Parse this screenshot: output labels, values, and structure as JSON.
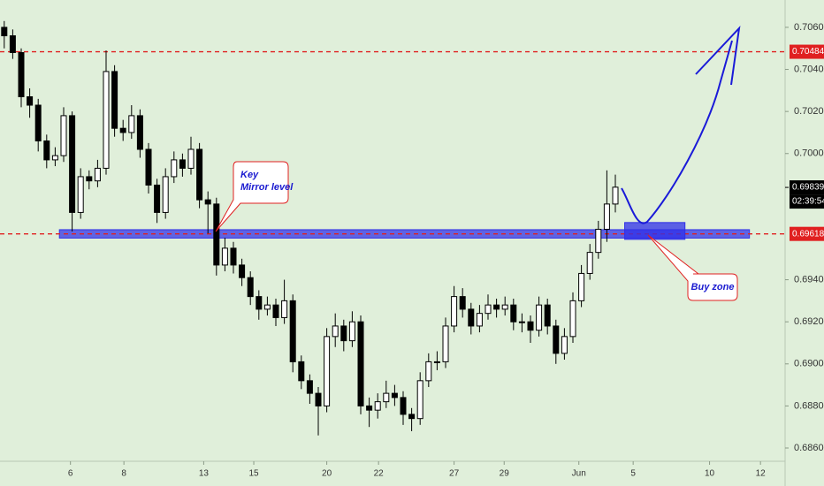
{
  "chart_data": {
    "type": "candlestick",
    "open": [
      0.706,
      0.7056,
      0.7048,
      0.7027,
      0.7023,
      0.7006,
      0.6997,
      0.6999,
      0.7018,
      0.6972,
      0.6989,
      0.6987,
      0.6993,
      0.7039,
      0.7012,
      0.701,
      0.7018,
      0.7002,
      0.6985,
      0.6972,
      0.6989,
      0.6997,
      0.6993,
      0.7002,
      0.6978,
      0.6976,
      0.6947,
      0.6955,
      0.6947,
      0.6941,
      0.6932,
      0.6926,
      0.6928,
      0.6922,
      0.693,
      0.6901,
      0.6892,
      0.6886,
      0.688,
      0.6913,
      0.6918,
      0.6911,
      0.692,
      0.688,
      0.6878,
      0.6882,
      0.6886,
      0.6884,
      0.6876,
      0.6874,
      0.6892,
      0.6901,
      0.6901,
      0.6918,
      0.6932,
      0.6926,
      0.6918,
      0.6924,
      0.6928,
      0.6926,
      0.6928,
      0.692,
      0.692,
      0.6916,
      0.6928,
      0.6918,
      0.6905,
      0.6913,
      0.693,
      0.6943,
      0.6953,
      0.6964,
      0.6976
    ],
    "high": [
      0.7063,
      0.7059,
      0.705,
      0.7031,
      0.7026,
      0.7009,
      0.7003,
      0.7022,
      0.702,
      0.6993,
      0.6992,
      0.6997,
      0.7049,
      0.7042,
      0.7016,
      0.7023,
      0.7021,
      0.7005,
      0.6988,
      0.6993,
      0.7001,
      0.7,
      0.7008,
      0.7005,
      0.6982,
      0.6979,
      0.696,
      0.6958,
      0.695,
      0.6944,
      0.6935,
      0.6932,
      0.6931,
      0.694,
      0.6933,
      0.6904,
      0.6895,
      0.6889,
      0.6917,
      0.6924,
      0.6921,
      0.6925,
      0.6923,
      0.6884,
      0.6886,
      0.6892,
      0.689,
      0.6887,
      0.6879,
      0.6896,
      0.6905,
      0.6906,
      0.6922,
      0.6937,
      0.6936,
      0.6929,
      0.6928,
      0.6933,
      0.6931,
      0.6932,
      0.6931,
      0.6924,
      0.6923,
      0.6932,
      0.6931,
      0.6921,
      0.6917,
      0.6934,
      0.6947,
      0.6957,
      0.6968,
      0.6992,
      0.699
    ],
    "low": [
      0.705,
      0.7045,
      0.7022,
      0.7017,
      0.7001,
      0.6993,
      0.6994,
      0.6996,
      0.6963,
      0.6969,
      0.6983,
      0.6984,
      0.699,
      0.7008,
      0.7006,
      0.7007,
      0.6998,
      0.6981,
      0.6967,
      0.6969,
      0.6986,
      0.6989,
      0.699,
      0.6974,
      0.6962,
      0.6942,
      0.6944,
      0.6943,
      0.6937,
      0.6928,
      0.6921,
      0.6923,
      0.6918,
      0.6919,
      0.6896,
      0.6888,
      0.6881,
      0.6866,
      0.6877,
      0.6908,
      0.6906,
      0.6908,
      0.6876,
      0.687,
      0.6874,
      0.6879,
      0.688,
      0.6871,
      0.6868,
      0.6871,
      0.6889,
      0.6897,
      0.6898,
      0.6915,
      0.6922,
      0.6914,
      0.6915,
      0.6921,
      0.6922,
      0.6923,
      0.6916,
      0.6915,
      0.691,
      0.6913,
      0.6914,
      0.69,
      0.6902,
      0.691,
      0.6927,
      0.694,
      0.695,
      0.6958,
      0.6972
    ],
    "close": [
      0.7056,
      0.7048,
      0.7027,
      0.7023,
      0.7006,
      0.6997,
      0.6999,
      0.7018,
      0.6972,
      0.6989,
      0.6987,
      0.6993,
      0.7039,
      0.7012,
      0.701,
      0.7018,
      0.7002,
      0.6985,
      0.6972,
      0.6989,
      0.6997,
      0.6993,
      0.7002,
      0.6978,
      0.6976,
      0.6947,
      0.6955,
      0.6947,
      0.6941,
      0.6932,
      0.6926,
      0.6928,
      0.6922,
      0.693,
      0.6901,
      0.6892,
      0.6886,
      0.688,
      0.6913,
      0.6918,
      0.6911,
      0.692,
      0.688,
      0.6878,
      0.6882,
      0.6886,
      0.6884,
      0.6876,
      0.6874,
      0.6892,
      0.6901,
      0.6901,
      0.6918,
      0.6932,
      0.6926,
      0.6918,
      0.6924,
      0.6928,
      0.6926,
      0.6928,
      0.692,
      0.692,
      0.6916,
      0.6928,
      0.6918,
      0.6905,
      0.6913,
      0.693,
      0.6943,
      0.6953,
      0.6964,
      0.6976,
      0.6984
    ],
    "up_color": "#ffffff",
    "down_color": "#000000",
    "xlim": [
      -0.5,
      92
    ],
    "xticks": [
      {
        "value": 7.8,
        "label": "6"
      },
      {
        "value": 14.1,
        "label": "8"
      },
      {
        "value": 23.5,
        "label": "13"
      },
      {
        "value": 29.4,
        "label": "15"
      },
      {
        "value": 38.0,
        "label": "20"
      },
      {
        "value": 44.1,
        "label": "22"
      },
      {
        "value": 53.0,
        "label": "27"
      },
      {
        "value": 58.9,
        "label": "29"
      },
      {
        "value": 67.7,
        "label": "Jun"
      },
      {
        "value": 74.1,
        "label": "5"
      },
      {
        "value": 83.1,
        "label": "10"
      },
      {
        "value": 89.1,
        "label": "12"
      }
    ],
    "ylim": [
      0.68537,
      0.7073
    ],
    "yticks": [
      {
        "value": 0.686,
        "label": "0.68600"
      },
      {
        "value": 0.688,
        "label": "0.68800"
      },
      {
        "value": 0.69,
        "label": "0.69000"
      },
      {
        "value": 0.692,
        "label": "0.69200"
      },
      {
        "value": 0.694,
        "label": "0.69400"
      },
      {
        "value": 0.7,
        "label": "0.70000"
      },
      {
        "value": 0.702,
        "label": "0.70200"
      },
      {
        "value": 0.704,
        "label": "0.70400"
      },
      {
        "value": 0.706,
        "label": "0.70600"
      }
    ],
    "hlines": [
      {
        "value": 0.70484,
        "label": "0.70484",
        "color": "#e02020"
      },
      {
        "value": 0.69618,
        "label": "0.69618",
        "color": "#e02020"
      }
    ],
    "last_price": {
      "value": 0.69839,
      "label": "0.69839",
      "countdown": "02:39:54"
    },
    "zones": [
      {
        "x0": 6.5,
        "x1": 87.8,
        "y0": 0.69598,
        "y1": 0.69638,
        "color": "#3434e6"
      },
      {
        "x0": 73.1,
        "x1": 80.2,
        "y0": 0.69592,
        "y1": 0.69672,
        "color": "#2f2fe8"
      }
    ],
    "annotations": [
      {
        "lines": [
          "Key",
          "Mirror level"
        ]
      },
      {
        "lines": [
          "Buy zone"
        ]
      }
    ]
  }
}
